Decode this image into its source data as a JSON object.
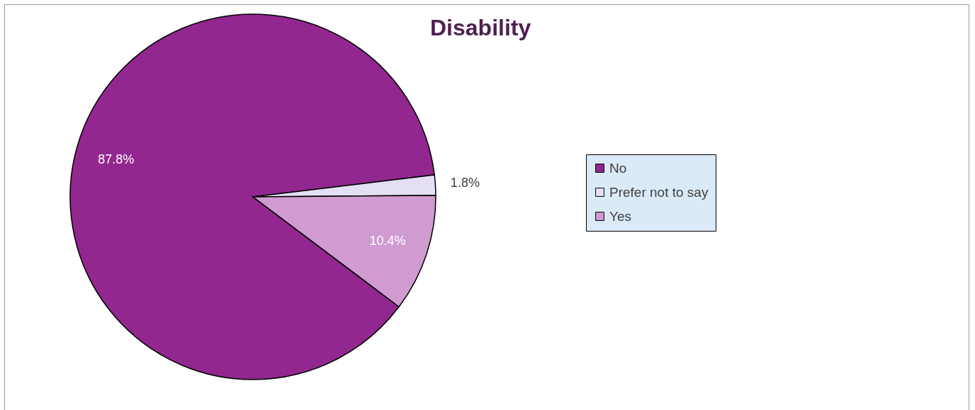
{
  "chart_data": {
    "type": "pie",
    "title": "Disability",
    "categories": [
      "No",
      "Prefer not to say",
      "Yes"
    ],
    "values": [
      87.8,
      1.8,
      10.4
    ],
    "value_labels": [
      "87.8%",
      "1.8%",
      "10.4%"
    ],
    "colors": [
      "#92278f",
      "#e4dff5",
      "#d09bd0"
    ],
    "legend": "right"
  }
}
